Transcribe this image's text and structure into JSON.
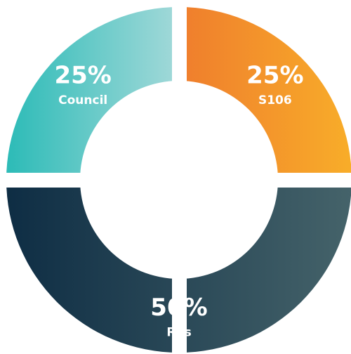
{
  "chart_data": {
    "type": "pie",
    "categories": [
      "S106",
      "RPs",
      "Council"
    ],
    "values": [
      25,
      50,
      25
    ],
    "value_labels": [
      "25%",
      "50%",
      "25%"
    ],
    "colors": [
      [
        "#ef7d2d",
        "#f8ad29"
      ],
      [
        "#0e2d44",
        "#45636a"
      ],
      [
        "#2cbbb7",
        "#a3d9d9"
      ]
    ],
    "donut": true
  }
}
